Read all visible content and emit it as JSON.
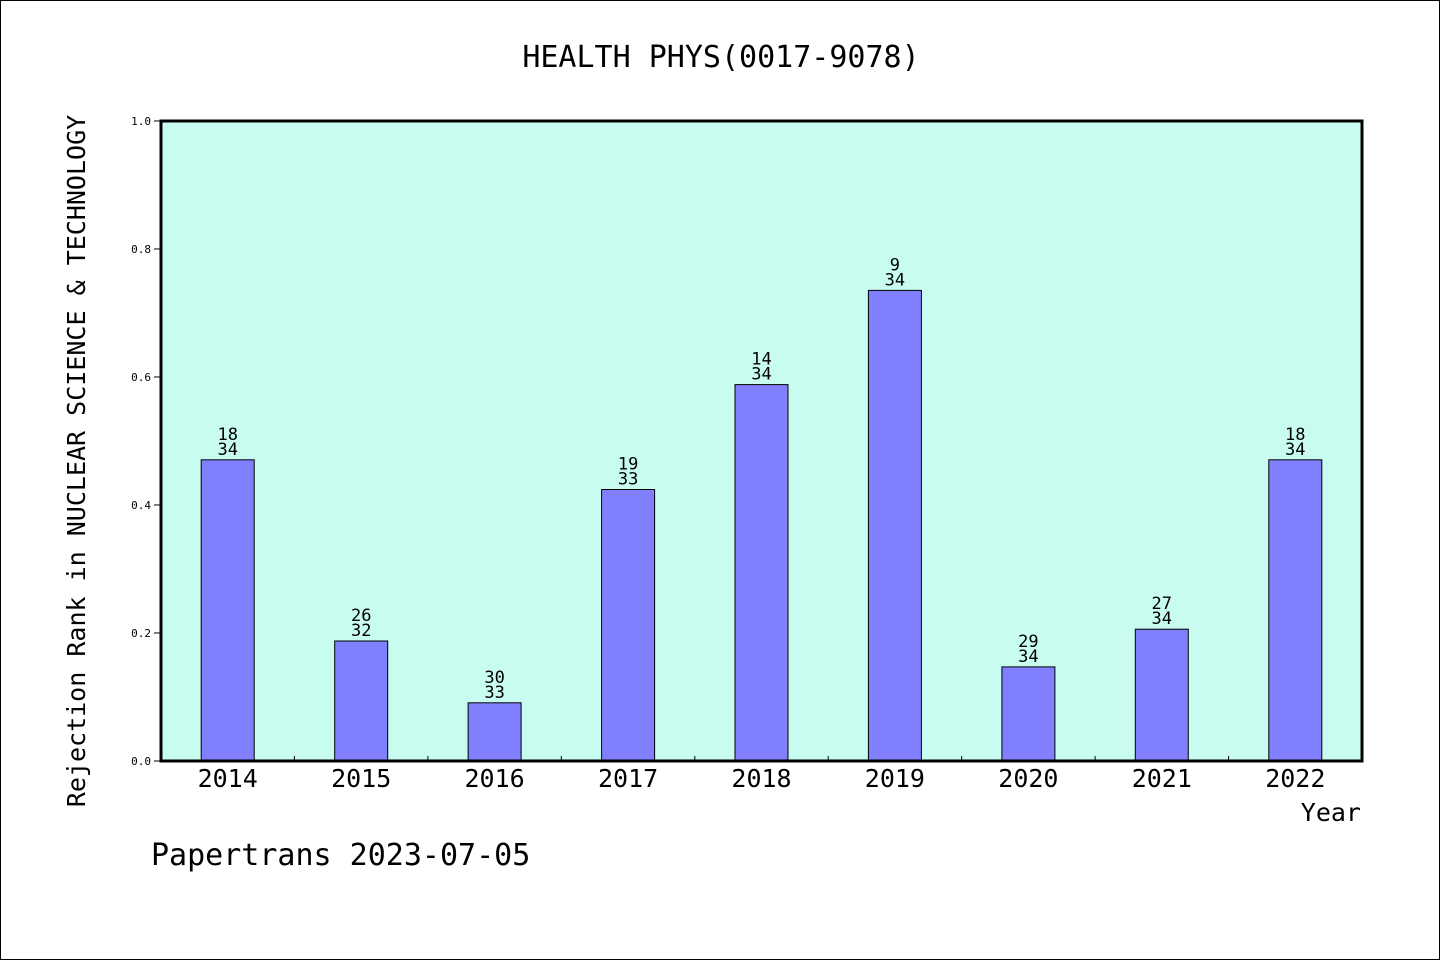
{
  "chart_data": {
    "type": "bar",
    "title": "HEALTH PHYS(0017-9078)",
    "xlabel": "Year",
    "ylabel": "Rejection Rank in NUCLEAR SCIENCE & TECHNOLOGY",
    "ylim": [
      0,
      1.0
    ],
    "yticks": [
      "0.0",
      "0.2",
      "0.4",
      "0.6",
      "0.8",
      "1.0"
    ],
    "grid": false,
    "categories": [
      "2014",
      "2015",
      "2016",
      "2017",
      "2018",
      "2019",
      "2020",
      "2021",
      "2022"
    ],
    "values": [
      0.4706,
      0.1875,
      0.0909,
      0.4242,
      0.5882,
      0.7353,
      0.1471,
      0.2059,
      0.4706
    ],
    "ranks": [
      "18",
      "26",
      "30",
      "19",
      "14",
      "9",
      "29",
      "27",
      "18"
    ],
    "totals": [
      "34",
      "32",
      "33",
      "33",
      "34",
      "34",
      "34",
      "34",
      "34"
    ],
    "colors": {
      "bar": "#8080ff",
      "plot_background": "#c8fcf0",
      "axis": "#000000"
    }
  },
  "footer": {
    "credit": "Papertrans 2023-07-05"
  }
}
